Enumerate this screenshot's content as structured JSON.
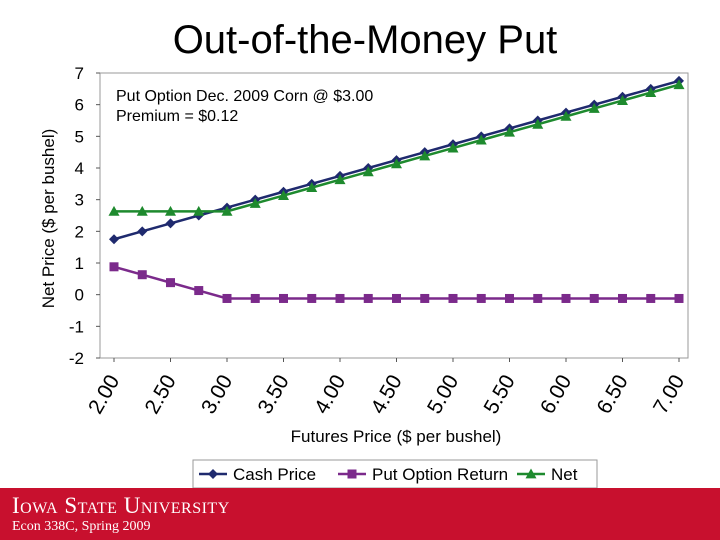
{
  "slide": {
    "title": "Out-of-the-Money Put"
  },
  "footer": {
    "university": "Iowa State University",
    "course": "Econ 338C, Spring 2009"
  },
  "colors": {
    "footer_bg": "#c8102e",
    "cash": "#1f2a6e",
    "put": "#7b2a8b",
    "net": "#1e8a2e"
  },
  "chart_data": {
    "type": "line",
    "annotation_lines": [
      "Put Option Dec. 2009 Corn @ $3.00",
      "Premium = $0.12"
    ],
    "xlabel": "Futures Price ($ per bushel)",
    "ylabel": "Net Price ($ per bushel)",
    "ylim": [
      -2,
      7
    ],
    "yticks": [
      "7",
      "6",
      "5",
      "4",
      "3",
      "2",
      "1",
      "0",
      "-1",
      "-2"
    ],
    "xtick_labels": [
      "2.00",
      "2.50",
      "3.00",
      "3.50",
      "4.00",
      "4.50",
      "5.00",
      "5.50",
      "6.00",
      "6.50",
      "7.00"
    ],
    "x": [
      2.0,
      2.25,
      2.5,
      2.75,
      3.0,
      3.25,
      3.5,
      3.75,
      4.0,
      4.25,
      4.5,
      4.75,
      5.0,
      5.25,
      5.5,
      5.75,
      6.0,
      6.25,
      6.5,
      6.75,
      7.0
    ],
    "grid": true,
    "legend_position": "bottom",
    "series": [
      {
        "name": "Cash Price",
        "marker": "diamond",
        "values": [
          1.75,
          2.0,
          2.25,
          2.5,
          2.75,
          3.0,
          3.25,
          3.5,
          3.75,
          4.0,
          4.25,
          4.5,
          4.75,
          5.0,
          5.25,
          5.5,
          5.75,
          6.0,
          6.25,
          6.5,
          6.75
        ]
      },
      {
        "name": "Put Option Return",
        "marker": "square",
        "values": [
          0.88,
          0.63,
          0.38,
          0.13,
          -0.12,
          -0.12,
          -0.12,
          -0.12,
          -0.12,
          -0.12,
          -0.12,
          -0.12,
          -0.12,
          -0.12,
          -0.12,
          -0.12,
          -0.12,
          -0.12,
          -0.12,
          -0.12,
          -0.12
        ]
      },
      {
        "name": "Net",
        "marker": "triangle",
        "values": [
          2.63,
          2.63,
          2.63,
          2.63,
          2.63,
          2.88,
          3.13,
          3.38,
          3.63,
          3.88,
          4.13,
          4.38,
          4.63,
          4.88,
          5.13,
          5.38,
          5.63,
          5.88,
          6.13,
          6.38,
          6.63
        ]
      }
    ]
  }
}
